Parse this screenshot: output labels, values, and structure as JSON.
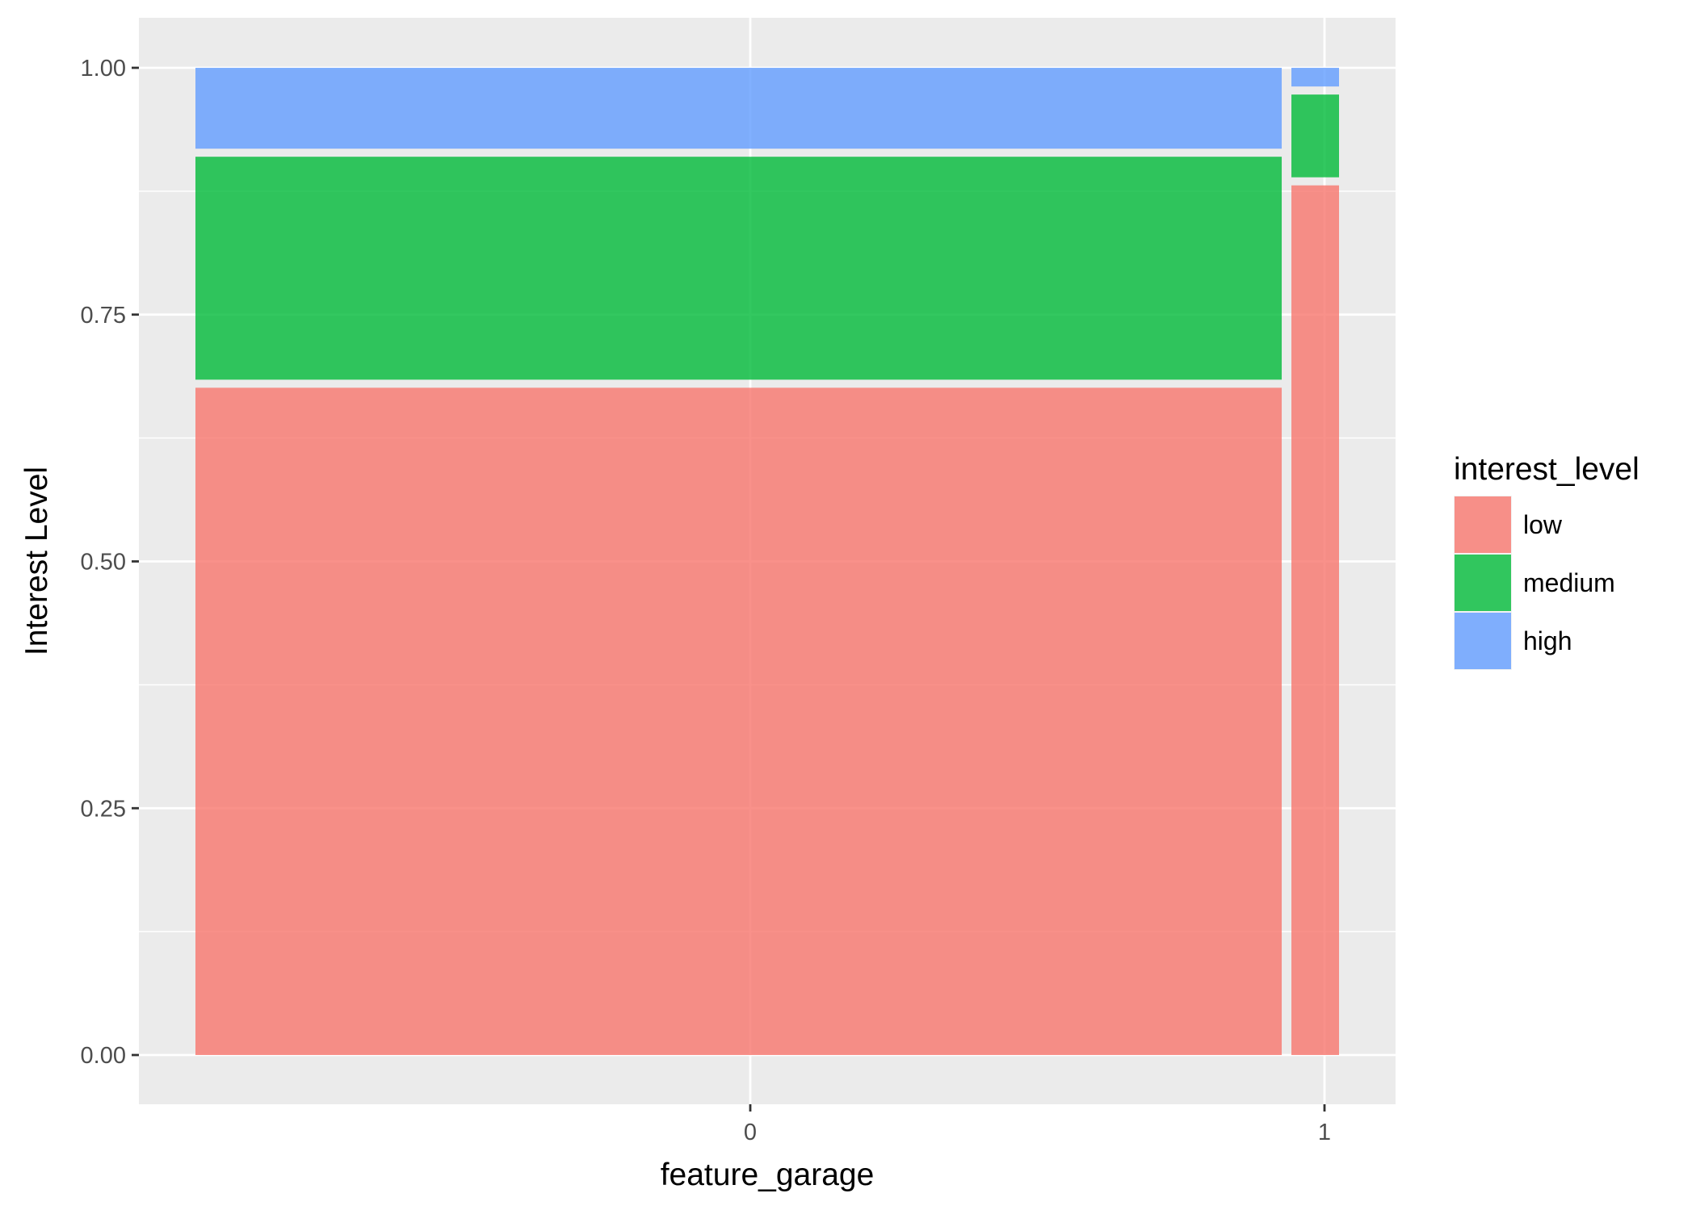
{
  "chart_data": {
    "type": "bar",
    "subtype": "mosaic",
    "title": "",
    "xlabel": "feature_garage",
    "ylabel": "Interest Level",
    "categories": [
      "0",
      "1"
    ],
    "category_share": [
      0.958,
      0.042
    ],
    "x_ticks": [
      "0",
      "1"
    ],
    "y_ticks": [
      "0.00",
      "0.25",
      "0.50",
      "0.75",
      "1.00"
    ],
    "ylim": [
      0,
      1
    ],
    "grid": true,
    "legend": {
      "title": "interest_level",
      "position": "right"
    },
    "series": [
      {
        "name": "low",
        "color": "#F8766D",
        "values": [
          0.68,
          0.885
        ]
      },
      {
        "name": "medium",
        "color": "#00BA38",
        "values": [
          0.234,
          0.092
        ]
      },
      {
        "name": "high",
        "color": "#619CFF",
        "values": [
          0.086,
          0.023
        ]
      }
    ]
  }
}
